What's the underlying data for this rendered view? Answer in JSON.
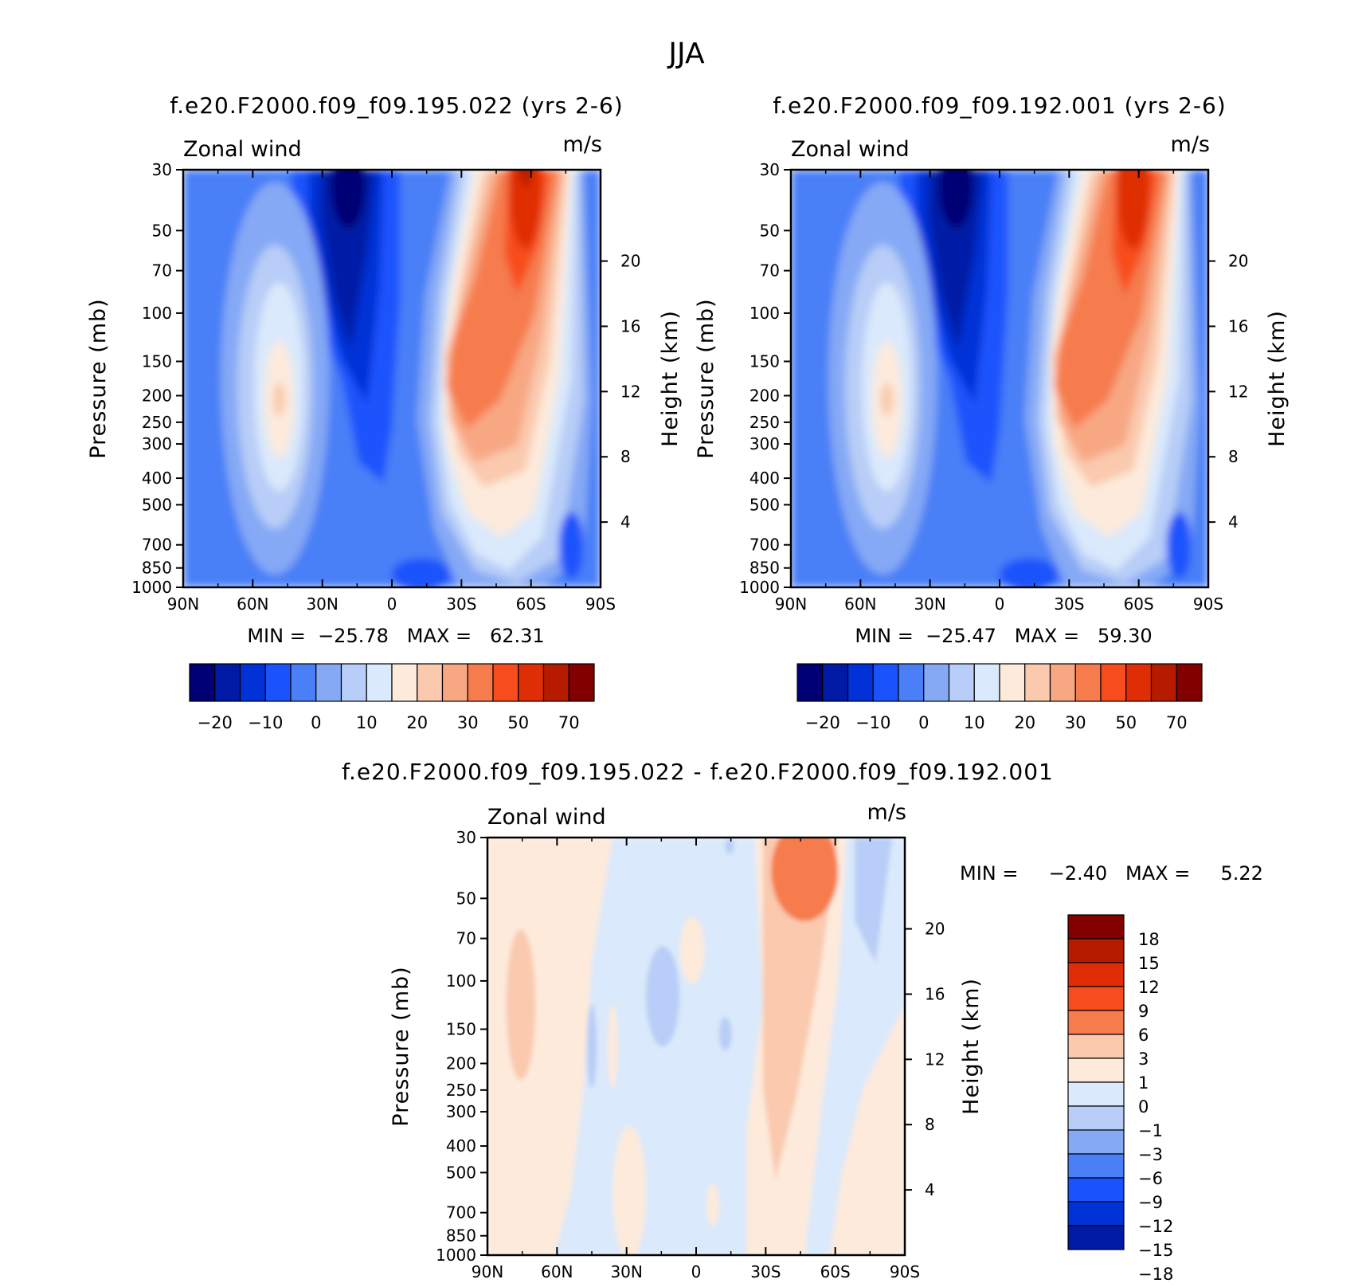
{
  "figure": {
    "title": "JJA"
  },
  "palette": {
    "full": [
      "#000074",
      "#001aa6",
      "#0032d7",
      "#1a53fc",
      "#4a7ff7",
      "#85a9f5",
      "#b8cdf7",
      "#dae9fb",
      "#fdeadb",
      "#fac9ae",
      "#f8a783",
      "#f67b4d",
      "#f74d1e",
      "#df2e06",
      "#b61b00",
      "#830000"
    ],
    "diff": [
      "#830000",
      "#b61b00",
      "#df2e06",
      "#f74d1e",
      "#f67b4d",
      "#fac9ae",
      "#fdeadb",
      "#dae9fb",
      "#b8cdf7",
      "#85a9f5",
      "#4a7ff7",
      "#1a53fc",
      "#0032d7",
      "#001aa6"
    ]
  },
  "panels": [
    {
      "id": "left",
      "title": "f.e20.F2000.f09_f09.195.022 (yrs 2-6)",
      "variable": "Zonal wind",
      "units": "m/s",
      "ylabel": "Pressure (mb)",
      "ylabel_right": "Height (km)",
      "stats": "MIN =  -25.78   MAX =   62.31",
      "colorbar_labels": [
        "-20",
        "-10",
        "0",
        "10",
        "20",
        "30",
        "50",
        "70"
      ]
    },
    {
      "id": "right",
      "title": "f.e20.F2000.f09_f09.192.001 (yrs 2-6)",
      "variable": "Zonal wind",
      "units": "m/s",
      "ylabel": "Pressure (mb)",
      "ylabel_right": "Height (km)",
      "stats": "MIN =  -25.47   MAX =   59.30",
      "colorbar_labels": [
        "-20",
        "-10",
        "0",
        "10",
        "20",
        "30",
        "50",
        "70"
      ]
    },
    {
      "id": "diff",
      "title": "f.e20.F2000.f09_f09.195.022 - f.e20.F2000.f09_f09.192.001",
      "variable": "Zonal wind",
      "units": "m/s",
      "ylabel": "Pressure (mb)",
      "ylabel_right": "Height (km)",
      "stats": "MIN =     -2.40   MAX =     5.22",
      "colorbar_labels": [
        "18",
        "15",
        "12",
        "9",
        "6",
        "3",
        "1",
        "0",
        "-1",
        "-3",
        "-6",
        "-9",
        "-12",
        "-15",
        "-18"
      ]
    }
  ],
  "chart_data": {
    "type": "heatmap",
    "title": "JJA",
    "x_ticks": [
      "90N",
      "60N",
      "30N",
      "0",
      "30S",
      "60S",
      "90S"
    ],
    "x_tick_values": [
      90,
      60,
      30,
      0,
      -30,
      -60,
      -90
    ],
    "xlim": [
      90,
      -90
    ],
    "y_ticks": [
      "30",
      "50",
      "70",
      "100",
      "150",
      "200",
      "250",
      "300",
      "400",
      "500",
      "700",
      "850",
      "1000"
    ],
    "y_tick_values": [
      30,
      50,
      70,
      100,
      150,
      200,
      250,
      300,
      400,
      500,
      700,
      850,
      1000
    ],
    "ylim": [
      1000,
      30
    ],
    "y_scale": "log",
    "y2_ticks": [
      "4",
      "8",
      "12",
      "16",
      "20"
    ],
    "y2_tick_values": [
      4,
      8,
      12,
      16,
      20
    ],
    "series": [
      {
        "panel": "left",
        "min": -25.78,
        "max": 62.31,
        "levels": [
          -25,
          -20,
          -15,
          -10,
          -5,
          0,
          5,
          10,
          15,
          20,
          25,
          30,
          40,
          50,
          60,
          70
        ]
      },
      {
        "panel": "right",
        "min": -25.47,
        "max": 59.3,
        "levels": [
          -25,
          -20,
          -15,
          -10,
          -5,
          0,
          5,
          10,
          15,
          20,
          25,
          30,
          40,
          50,
          60,
          70
        ]
      },
      {
        "panel": "diff",
        "min": -2.4,
        "max": 5.22,
        "levels": [
          -18,
          -15,
          -12,
          -9,
          -6,
          -3,
          -1,
          0,
          1,
          3,
          6,
          9,
          12,
          15,
          18
        ]
      }
    ]
  }
}
